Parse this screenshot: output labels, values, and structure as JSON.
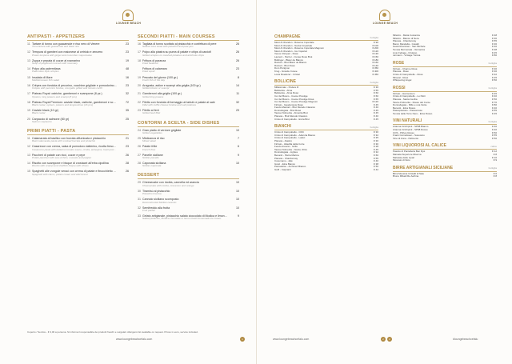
{
  "brand": {
    "logo_text": "LOUNGE BEACH"
  },
  "food": {
    "antipasti": {
      "title": "ANTIPASTI - APPETIZERS",
      "items": [
        {
          "n": "11",
          "name": "Tartare di tonno con guacamole e riso nero di Venere",
          "sub": "Tuna tartare with guacamole and black rice",
          "price": "23"
        },
        {
          "n": "12",
          "name": "Tempura di gamberi con maionese al cetriolo e zenzero",
          "sub": "Prawn tempura with ginger and cucumber mayonnaise",
          "price": "23"
        },
        {
          "n": "13",
          "name": "Zuppa e pepata di cozze al rosmarino",
          "sub": "Soup of peppered mussels with rosemary",
          "price": "19"
        },
        {
          "n": "14",
          "name": "Polpo alla palermitana",
          "sub": "Palermitan style octopus",
          "price": "48"
        },
        {
          "n": "15",
          "name": "Insalata di Mare",
          "sub": "Mediterranean fish salad",
          "price": "16"
        },
        {
          "n": "16",
          "name": "Crêpes con fonduta di pecorino, zucchine grigliate e pomodorino confit",
          "sub": "Crêpes with pecorino fondue, courgette grilled and tomato confit",
          "price": "23"
        },
        {
          "n": "17",
          "name": "Plateau Royal: ostriche, gamberoni e scampone (8 pz.)",
          "sub": "Oysters, king prawns and scampi (8 pcs)",
          "price": "32"
        },
        {
          "n": "18",
          "name": "Plateau Royal Premium: caviale black, ostriche, gamberoni e scampone (16 pz.)",
          "sub": "Black caviar, oysters, prawns and langoustines (16 pcs)",
          "price": "72"
        },
        {
          "n": "19",
          "name": "Caviale black (10 gr)",
          "sub": "Black caviar",
          "price": "35"
        },
        {
          "n": "20",
          "name": "Carpaccio di salmone (80 gr)",
          "sub": "Salmon carpaccio",
          "price": "25"
        }
      ]
    },
    "primi": {
      "title": "PRIMI PIATTI - PASTA",
      "items": [
        {
          "n": "11",
          "name": "Calamarata al basilico con burrata affumicata e pistacchio",
          "sub": "Basil calamarata pasta with smoked burrata and pistachio",
          "price": "21"
        },
        {
          "n": "12",
          "name": "Casarecce con crema, salsa di pomodoro datterino, ricotta fresca, melanzane, pesto di basilico e menta",
          "sub": "Casarecce pasta with datterino tomato sauce, ricotta, aubergine, basil pesto and mint",
          "price": "23"
        },
        {
          "n": "13",
          "name": "Paccheri di patate con ricci, cozze e pepe",
          "sub": "Potato paccheri with sea urchins, mussels and pepper",
          "price": "26"
        },
        {
          "n": "14",
          "name": "Risotto con scampone e bisque di crostacei all'erba cipollina",
          "sub": "Risotto with scampi and shellfish bisque with chives",
          "price": "28"
        },
        {
          "n": "15",
          "name": "Spaghetti alle vongole veraci con crema di patate e finocchietto selvatico",
          "sub": "Spaghetti with clams, potato cream and wild fennel",
          "price": "26"
        }
      ]
    },
    "secondi": {
      "title": "SECONDI PIATTI - MAIN COURSES",
      "items": [
        {
          "n": "16",
          "name": "Tagliata di tonno scottato al pistacchio e confettura di pere",
          "sub": "Seared tuna steak with pistachio and pear jam",
          "price": "26"
        },
        {
          "n": "17",
          "name": "Polpo alla piastra su purea di patate e chips di carciofi",
          "sub": "Grilled octopus on mashed potatoes and artichoke chips",
          "price": "26"
        },
        {
          "n": "18",
          "name": "Frittura di paranza",
          "sub": "Fried Seafood",
          "price": "26"
        },
        {
          "n": "",
          "name": "Frittura di calamaro",
          "sub": "Fried squid",
          "price": "23"
        },
        {
          "n": "19",
          "name": "Pescato del giorno (100 gr.)",
          "sub": "Fresh fish of the day",
          "price": "8"
        },
        {
          "n": "20",
          "name": "Aragosta, astice e scampi alla griglia (100 gr.)",
          "sub": "Grilled lobster or scampi",
          "price": "14"
        },
        {
          "n": "21",
          "name": "Gamberoni alla griglia (100 gr.)",
          "sub": "Grilled king prawns",
          "price": "11"
        },
        {
          "n": "22",
          "name": "Filetto con fonduta di formaggio al tartufo e patate al sale",
          "sub": "Fillet with truffle cheese fondue and salt potatoes",
          "price": "32"
        },
        {
          "n": "23",
          "name": "Filetto ai ferri",
          "sub": "Grilled beef fillet",
          "price": "29"
        }
      ]
    },
    "contorni": {
      "title": "CONTORNI A SCELTA - SIDE DISHES",
      "items": [
        {
          "n": "24",
          "name": "Gran piatto di verdure grigliate",
          "sub": "Grilled vegetables",
          "price": "10"
        },
        {
          "n": "25",
          "name": "Misticanza di riso",
          "sub": "Mixed salad",
          "price": "7"
        },
        {
          "n": "26",
          "name": "Patate fritte",
          "sub": "French fries",
          "price": "6"
        },
        {
          "n": "27",
          "name": "Panelle siciliane",
          "sub": "Sicilian panelle",
          "price": "9"
        },
        {
          "n": "28",
          "name": "Caponata siciliana",
          "sub": "Sicilian caponata",
          "price": "10"
        }
      ]
    },
    "dessert": {
      "title": "DESSERT",
      "items": [
        {
          "n": "29",
          "name": "Cheesecake con ricotta, cannella ed arancia",
          "sub": "Cheesecake with ricotta, cinnamon and orange",
          "price": "10"
        },
        {
          "n": "30",
          "name": "Tiramisù al pistacchio",
          "sub": "Pistachio tiramisu",
          "price": "10"
        },
        {
          "n": "31",
          "name": "Cannolo siciliano scomposto",
          "sub": "Deconstructed Sicilian cannolo",
          "price": "10"
        },
        {
          "n": "32",
          "name": "Semifreddo alla frutta",
          "sub": "Fruit parfait",
          "price": "10"
        },
        {
          "n": "33",
          "name": "Gelato artigianale, pistacchio salato cioccolato di Modica e limone al basilico",
          "sub": "Salted pistachio, Modica chocolate or lemon basil homemade ice cream",
          "price": "9"
        }
      ]
    },
    "footnote": "Coperto / Service - € 3,00 a persona. Si informa il responsabile dei prodotti freschi e surgelati. Allergens list available on request. Prices in euro, service included.",
    "website": "www.loungebeachcefalu.com",
    "page": "1"
  },
  "wine": {
    "champagne": {
      "title": "CHAMPAGNE",
      "unit": "bottiglia",
      "rows": [
        {
          "name": "Moët & Chandon - Réserve Impériale",
          "price": "€ 90"
        },
        {
          "name": "Moët & Chandon - Nectar Impériale",
          "price": "€ 100"
        },
        {
          "name": "Moët & Chandon - Réserve Impériale Magnum",
          "price": "€ 200"
        },
        {
          "name": "Moët & Chandon - Ice Impérial",
          "price": "€ 120"
        },
        {
          "name": "Veuve Clicquot - Rosé",
          "price": "€ 130"
        },
        {
          "name": "Laurent - Perrier - Cuvée Rosé Brut",
          "price": "€ 150"
        },
        {
          "name": "Bollinger - Blanc de Blancs",
          "price": "€ 180"
        },
        {
          "name": "Ruinart - Brut Blanc de Blancs",
          "price": "€ 160"
        },
        {
          "name": "Ruinart - Brut Rosé",
          "price": "€ 140"
        },
        {
          "name": "Dom Pérignon",
          "price": "€ 350"
        },
        {
          "name": "Krug - Grande Cuvée",
          "price": "€ 400"
        },
        {
          "name": "Louis Roederer - Cristal",
          "price": "€ 450"
        }
      ]
    },
    "bollicine": {
      "title": "BOLLICINE",
      "unit": "bottiglia",
      "rows": [
        {
          "name": "Millesimato - Podere R",
          "price": "€ 30"
        },
        {
          "name": "Bellavista - Alma",
          "price": "€ 55"
        },
        {
          "name": "Bellavista - Alma Rosé",
          "price": "€ 60"
        },
        {
          "name": "Ca' del Bosco - Cuvée Prestige",
          "price": "€ 60"
        },
        {
          "name": "Ca' del Bosco - Cuvée Prestige Rosé",
          "price": "€ 65"
        },
        {
          "name": "Ca' del Bosco - Cuvée Prestige Magnum",
          "price": "€ 120"
        },
        {
          "name": "Firriato - Gaudensius Rosé",
          "price": "€ 45"
        },
        {
          "name": "Feudo Maccari - Brut Metodo Classico",
          "price": "€ 40"
        },
        {
          "name": "Donnafugata - Brut Rosé",
          "price": "€ 45"
        },
        {
          "name": "Tasca d'Almerita - Almerita Brut",
          "price": "€ 45"
        },
        {
          "name": "Planeta - Brut Metodo Classico",
          "price": "€ 40"
        },
        {
          "name": "Cristo di Campobello - Extra Brut",
          "price": "€ 45"
        }
      ]
    },
    "bianchi": {
      "title": "BIANCHI",
      "unit": "bottiglia",
      "rows": [
        {
          "name": "Cristo di Campobello - CDC",
          "price": "€ 30"
        },
        {
          "name": "Cristo di Campobello - Adènzia Bianco",
          "price": "€ 32"
        },
        {
          "name": "Cristo di Campobello - Lalùci",
          "price": "€ 35"
        },
        {
          "name": "Planeta - Alastro",
          "price": "€ 30"
        },
        {
          "name": "Firriato - Altavilla della Corte",
          "price": "€ 30"
        },
        {
          "name": "Feudo Arancio - Grillo",
          "price": "€ 28"
        },
        {
          "name": "Tasca d'Almerita - Nozze d'Oro",
          "price": "€ 45"
        },
        {
          "name": "Donnafugata - Lighea",
          "price": "€ 32"
        },
        {
          "name": "Benanti - Pietra Marina",
          "price": "€ 60"
        },
        {
          "name": "Planeta - Chardonnay",
          "price": "€ 55"
        },
        {
          "name": "Cusumano - Jalé",
          "price": "€ 40"
        },
        {
          "name": "Graci - Etna Bianco",
          "price": "€ 38"
        },
        {
          "name": "Pietradolce - Archineri Bianco",
          "price": "€ 50"
        },
        {
          "name": "Gulfi - Carjcanti",
          "price": "€ 42"
        }
      ]
    },
    "bianchi_extra": {
      "title": "",
      "unit": "",
      "rows": [
        {
          "name": "Milazzo - Maria Costanza",
          "price": "€ 48"
        },
        {
          "name": "Milazzo - Bianco di Nera",
          "price": "€ 30"
        },
        {
          "name": "Planeta - Chardonnay",
          "price": "€ 55"
        },
        {
          "name": "Baron Mandella - Cavalli",
          "price": "€ 36"
        },
        {
          "name": "Gewürztraminer - San Michele",
          "price": "€ 40"
        },
        {
          "name": "Tenuta Mormoraia - Vernaccia",
          "price": "€ 38"
        },
        {
          "name": "Livio Felluga - Friulano",
          "price": "€ 45"
        },
        {
          "name": "Jermann - Vintage Tunina",
          "price": "€ 80"
        }
      ]
    },
    "rose": {
      "title": "ROSÉ",
      "unit": "bottiglia",
      "rows": [
        {
          "name": "Firriato - Charme Rosé",
          "price": "€ 30"
        },
        {
          "name": "Planeta - Rosé",
          "price": "€ 30"
        },
        {
          "name": "Cristo di Campobello - Rosé",
          "price": "€ 32"
        },
        {
          "name": "Miraval - Rosé",
          "price": "€ 45"
        },
        {
          "name": "Whispering Angel",
          "price": "€ 50"
        }
      ]
    },
    "rossi": {
      "title": "ROSSI",
      "unit": "bottiglia",
      "rows": [
        {
          "name": "Firriato - Harmonium",
          "price": "€ 45"
        },
        {
          "name": "Cristo di Campobello - Lu Patri",
          "price": "€ 40"
        },
        {
          "name": "Planeta - Santa Cecilia",
          "price": "€ 50"
        },
        {
          "name": "Tasca d'Almerita - Rosso del Conte",
          "price": "€ 70"
        },
        {
          "name": "Donnafugata - Mille e una Notte",
          "price": "€ 80"
        },
        {
          "name": "Benanti - Etna Rosso",
          "price": "€ 40"
        },
        {
          "name": "Passopisciaro - Passorosso",
          "price": "€ 55"
        },
        {
          "name": "Tenuta delle Terre Nere - Etna Rosso",
          "price": "€ 45"
        }
      ]
    },
    "naturali": {
      "title": "VINI NATURALI",
      "unit": "bottiglia",
      "rows": [
        {
          "name": "Arianna Occhipinti - SP68 Bianco",
          "price": "€ 40"
        },
        {
          "name": "Arianna Occhipinti - SP68 Rosso",
          "price": "€ 40"
        },
        {
          "name": "COS - Pithos Rosso",
          "price": "€ 50"
        },
        {
          "name": "Frank Cornelissen - Susucaru",
          "price": "€ 55"
        },
        {
          "name": "Vino di Anna - Palmento",
          "price": "€ 50"
        }
      ]
    },
    "liquorosi": {
      "title": "VINI LIQUOROSI AL CALICE",
      "unit": "calice",
      "rows": [
        {
          "name": "Passito di Pantelleria Ben Ryé",
          "price": "€ 12"
        },
        {
          "name": "Marsala Superiore Riserva",
          "price": "€ 8"
        },
        {
          "name": "Malvasia delle Lipari",
          "price": "€ 10"
        },
        {
          "name": "Moscato di Noto",
          "price": "€ 9"
        }
      ]
    },
    "birre": {
      "title": "BIRRE ARTIGIANALI SICILIANE",
      "unit": "bottiglia",
      "rows": [
        {
          "name": "Birra Messina Cristalli di Sale",
          "price": "€ 6"
        },
        {
          "name": "Bruno Ribadi Re Aethna",
          "price": "€ 8"
        }
      ]
    },
    "website": "www.loungebeachcefalu.com",
    "social": "#loungebeachcefalu",
    "page": "2"
  }
}
